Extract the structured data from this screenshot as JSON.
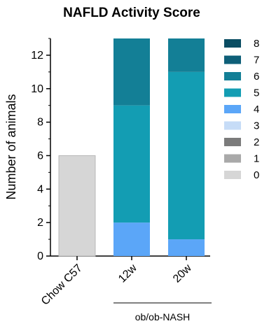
{
  "chart_data": {
    "type": "bar",
    "stacked": true,
    "title": "NAFLD Activity Score",
    "ylabel": "Number of animals",
    "xlabel": "",
    "ylim": [
      0,
      13
    ],
    "yticks": [
      0,
      2,
      4,
      6,
      8,
      10,
      12
    ],
    "categories": [
      "Chow C57",
      "12w",
      "20w"
    ],
    "group_label": "ob/ob-NASH",
    "group_categories": [
      "12w",
      "20w"
    ],
    "legend_position": "right",
    "series": [
      {
        "name": "8",
        "color": "#0a4d63",
        "values": [
          0,
          0,
          0
        ]
      },
      {
        "name": "7",
        "color": "#0e5f78",
        "values": [
          0,
          0,
          0
        ]
      },
      {
        "name": "6",
        "color": "#137f96",
        "values": [
          0,
          4,
          2
        ]
      },
      {
        "name": "5",
        "color": "#139db3",
        "values": [
          0,
          7,
          10
        ]
      },
      {
        "name": "4",
        "color": "#5ba6f8",
        "values": [
          0,
          2,
          1
        ]
      },
      {
        "name": "3",
        "color": "#c6dcf7",
        "values": [
          0,
          0,
          0
        ]
      },
      {
        "name": "2",
        "color": "#7b7b7b",
        "values": [
          0,
          0,
          0
        ]
      },
      {
        "name": "1",
        "color": "#a9a9a9",
        "values": [
          0,
          0,
          0
        ]
      },
      {
        "name": "0",
        "color": "#d6d6d6",
        "values": [
          6,
          0,
          0
        ]
      }
    ]
  }
}
